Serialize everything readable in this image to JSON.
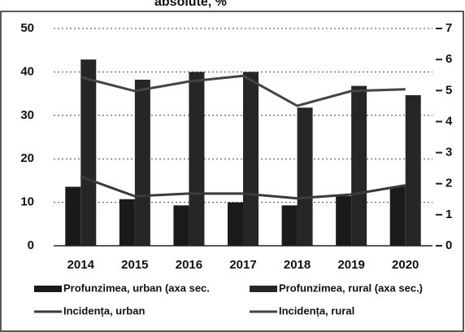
{
  "chart_data": {
    "type": "combo",
    "title": "absolute, %",
    "categories": [
      "2014",
      "2015",
      "2016",
      "2017",
      "2018",
      "2019",
      "2020"
    ],
    "ylim": [
      0,
      50
    ],
    "yticks": [
      0,
      10,
      20,
      30,
      40,
      50
    ],
    "y2lim": [
      0,
      7
    ],
    "y2ticks": [
      0,
      1,
      2,
      3,
      4,
      5,
      6,
      7
    ],
    "grid": true,
    "legend": "bottom",
    "series": [
      {
        "name": "Profunzimea, urban (axa sec.",
        "type": "bar",
        "axis": "y2",
        "color": "#1a1a1a",
        "values": [
          1.9,
          1.5,
          1.3,
          1.4,
          1.3,
          1.6,
          1.9
        ]
      },
      {
        "name": "Profunzimea, rural (axa sec.)",
        "type": "bar",
        "axis": "y2",
        "color": "#262626",
        "values": [
          6.0,
          5.35,
          5.6,
          5.6,
          4.45,
          5.15,
          4.85
        ]
      },
      {
        "name": "Incidența, urban",
        "type": "line",
        "color": "#3a3a3a",
        "values": [
          15.9,
          11.4,
          12.0,
          12.0,
          10.9,
          11.8,
          13.9
        ]
      },
      {
        "name": "Incidența, rural",
        "type": "line",
        "color": "#444444",
        "values": [
          38.8,
          35.6,
          37.8,
          39.1,
          32.2,
          35.6,
          36.0
        ]
      }
    ]
  }
}
